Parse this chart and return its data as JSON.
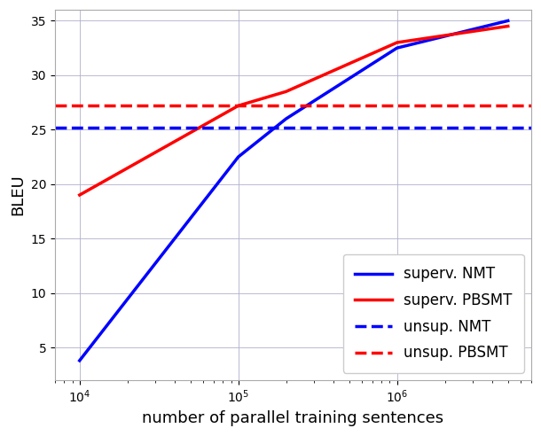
{
  "superv_nmt_x": [
    10000,
    100000,
    200000,
    1000000,
    5000000
  ],
  "superv_nmt_y": [
    3.8,
    22.5,
    26.0,
    32.5,
    35.0
  ],
  "superv_pbsmt_x": [
    10000,
    100000,
    200000,
    1000000,
    5000000
  ],
  "superv_pbsmt_y": [
    19.0,
    27.2,
    28.5,
    33.0,
    34.5
  ],
  "unsup_nmt_value": 25.2,
  "unsup_pbsmt_value": 27.2,
  "xlim": [
    7000,
    7000000
  ],
  "ylim": [
    2,
    36
  ],
  "yticks": [
    5,
    10,
    15,
    20,
    25,
    30,
    35
  ],
  "xlabel": "number of parallel training sentences",
  "ylabel": "BLEU",
  "legend_labels": [
    "superv. NMT",
    "superv. PBSMT",
    "unsup. NMT",
    "unsup. PBSMT"
  ],
  "color_blue": "#0000ff",
  "color_red": "#ff0000",
  "linewidth": 2.5,
  "figsize": [
    6.1,
    4.92
  ],
  "dpi": 100
}
